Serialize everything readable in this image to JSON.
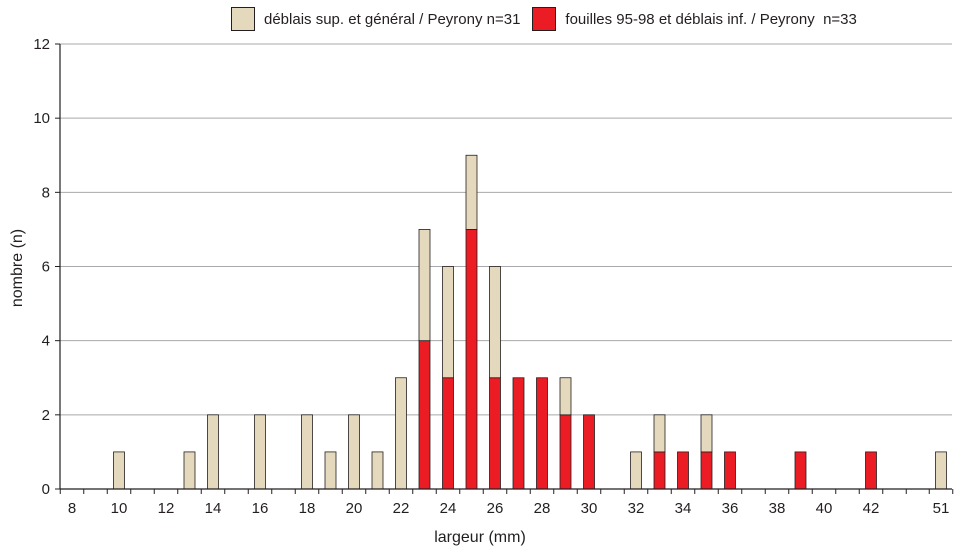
{
  "chart_data": {
    "type": "bar",
    "stacked": true,
    "xlabel": "largeur (mm)",
    "ylabel": "nombre (n)",
    "ylim": [
      0,
      12
    ],
    "yticks": [
      0,
      2,
      4,
      6,
      8,
      10,
      12
    ],
    "grid": true,
    "legend_position": "top-right",
    "x_tick_labels": [
      "8",
      "10",
      "12",
      "14",
      "16",
      "18",
      "20",
      "22",
      "24",
      "26",
      "28",
      "30",
      "32",
      "34",
      "36",
      "38",
      "40",
      "42",
      "51"
    ],
    "categories": [
      8,
      9,
      10,
      11,
      12,
      13,
      14,
      15,
      16,
      17,
      18,
      19,
      20,
      21,
      22,
      23,
      24,
      25,
      26,
      27,
      28,
      29,
      30,
      31,
      32,
      33,
      34,
      35,
      36,
      37,
      38,
      39,
      40,
      41,
      42,
      43,
      44,
      51
    ],
    "series": [
      {
        "name": "fouilles 95-98 et déblais inf. / Peyrony  n=33",
        "color": "#ec1c24",
        "values": [
          0,
          0,
          0,
          0,
          0,
          0,
          0,
          0,
          0,
          0,
          0,
          0,
          0,
          0,
          0,
          4,
          3,
          7,
          3,
          3,
          3,
          2,
          2,
          0,
          0,
          1,
          1,
          1,
          1,
          0,
          0,
          1,
          0,
          0,
          1,
          0,
          0,
          0
        ]
      },
      {
        "name": "déblais sup. et général / Peyrony n=31",
        "color": "#e5d9bd",
        "values": [
          0,
          0,
          1,
          0,
          0,
          1,
          2,
          0,
          2,
          0,
          2,
          1,
          2,
          1,
          3,
          3,
          3,
          2,
          3,
          0,
          0,
          1,
          0,
          0,
          1,
          1,
          0,
          1,
          0,
          0,
          0,
          0,
          0,
          0,
          0,
          0,
          0,
          1
        ]
      }
    ]
  }
}
